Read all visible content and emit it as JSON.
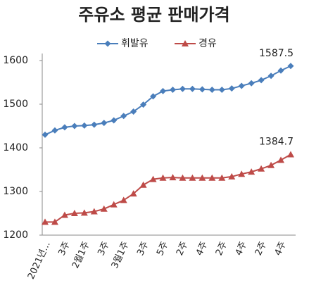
{
  "chart_data": {
    "type": "line",
    "title": "주유소 평균 판매가격",
    "categories": [
      "2021년...",
      null,
      "3주",
      null,
      "2월1주",
      null,
      "3주",
      null,
      "3월1주",
      null,
      "3주",
      null,
      "5주",
      null,
      "2주",
      null,
      "4주",
      null,
      "2주",
      null,
      "4주",
      null,
      "2주",
      null,
      "4주",
      null
    ],
    "series": [
      {
        "name": "휘발유",
        "color": "#4a7ebb",
        "marker": "diamond",
        "values": [
          1430,
          1440,
          1447,
          1450,
          1451,
          1453,
          1457,
          1463,
          1473,
          1483,
          1499,
          1518,
          1530,
          1533,
          1535,
          1535,
          1534,
          1533,
          1533,
          1536,
          1542,
          1548,
          1555,
          1565,
          1577,
          1587.5
        ]
      },
      {
        "name": "경유",
        "color": "#be4b48",
        "marker": "triangle",
        "values": [
          1230,
          1230,
          1246,
          1250,
          1251,
          1254,
          1260,
          1270,
          1280,
          1295,
          1315,
          1328,
          1331,
          1332,
          1331,
          1331,
          1331,
          1331,
          1331,
          1334,
          1340,
          1345,
          1352,
          1360,
          1372,
          1384.7
        ]
      }
    ],
    "ylim": [
      1200,
      1600
    ],
    "yticks": [
      1200,
      1300,
      1400,
      1500,
      1600
    ],
    "legend": "top"
  }
}
